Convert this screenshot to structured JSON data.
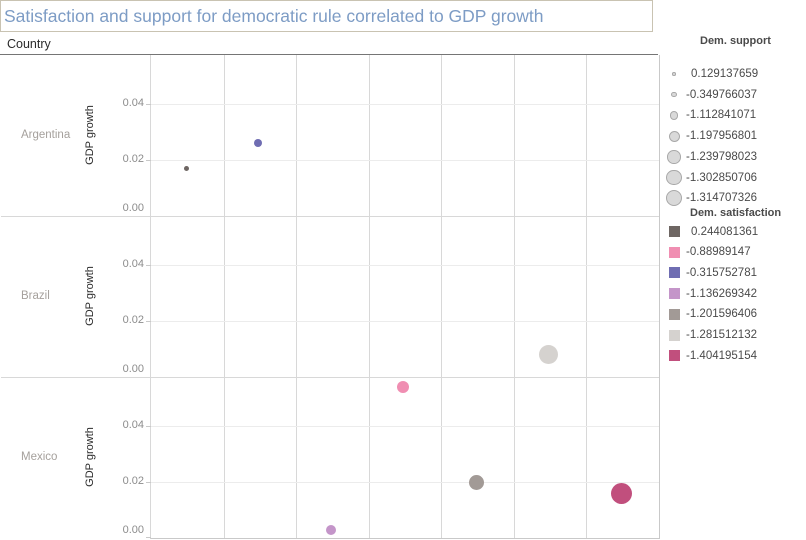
{
  "title": "Satisfaction and support for democratic rule correlated to GDP growth",
  "country_header": "Country",
  "chart_data": {
    "type": "scatter",
    "facet_column_label": "Country",
    "ylabel": "GDP growth",
    "ytick_labels": [
      "0.00",
      "0.02",
      "0.04"
    ],
    "yticks": [
      0.0,
      0.02,
      0.04
    ],
    "ylim": [
      0.0,
      0.0575
    ],
    "x_axis_labeled": false,
    "vertical_gridline_columns": 7,
    "grid": true,
    "panels": [
      {
        "country": "Argentina",
        "points": [
          {
            "x_frac": 0.069,
            "gdp_growth": 0.017,
            "dem_support": 0.129137659,
            "dem_satisfaction": 0.244081361,
            "color": "#6e6663",
            "diameter": 5
          },
          {
            "x_frac": 0.21,
            "gdp_growth": 0.026,
            "dem_support": -0.349766037,
            "dem_satisfaction": -0.315752781,
            "color": "#6f6db2",
            "diameter": 8
          }
        ]
      },
      {
        "country": "Brazil",
        "points": [
          {
            "x_frac": 0.783,
            "gdp_growth": 0.008,
            "dem_support": -1.302850706,
            "dem_satisfaction": -1.281512132,
            "color": "#d5d2cf",
            "diameter": 19
          }
        ]
      },
      {
        "country": "Mexico",
        "points": [
          {
            "x_frac": 0.496,
            "gdp_growth": 0.054,
            "dem_support": -1.197956801,
            "dem_satisfaction": -0.88989147,
            "color": "#f08eb2",
            "diameter": 12
          },
          {
            "x_frac": 0.354,
            "gdp_growth": 0.003,
            "dem_support": -1.112841071,
            "dem_satisfaction": -1.136269342,
            "color": "#c495c9",
            "diameter": 10
          },
          {
            "x_frac": 0.64,
            "gdp_growth": 0.02,
            "dem_support": -1.239798023,
            "dem_satisfaction": -1.201596406,
            "color": "#a29a96",
            "diameter": 15
          },
          {
            "x_frac": 0.927,
            "gdp_growth": 0.016,
            "dem_support": -1.314707326,
            "dem_satisfaction": -1.404195154,
            "color": "#c14f7d",
            "diameter": 21
          }
        ]
      }
    ]
  },
  "legends": {
    "size": {
      "title": "Dem. support",
      "items": [
        {
          "label": "0.129137659",
          "diameter": 3.5
        },
        {
          "label": "-0.349766037",
          "diameter": 5.5
        },
        {
          "label": "-1.112841071",
          "diameter": 8.5
        },
        {
          "label": "-1.197956801",
          "diameter": 11
        },
        {
          "label": "-1.239798023",
          "diameter": 13.5
        },
        {
          "label": "-1.302850706",
          "diameter": 15.5
        },
        {
          "label": "-1.314707326",
          "diameter": 16.5
        }
      ]
    },
    "color": {
      "title": "Dem. satisfaction",
      "items": [
        {
          "label": "0.244081361",
          "color": "#6e6663"
        },
        {
          "label": "-0.88989147",
          "color": "#f08eb2"
        },
        {
          "label": "-0.315752781",
          "color": "#6f6db2"
        },
        {
          "label": "-1.136269342",
          "color": "#c495c9"
        },
        {
          "label": "-1.201596406",
          "color": "#a29a96"
        },
        {
          "label": "-1.281512132",
          "color": "#d5d2cf"
        },
        {
          "label": "-1.404195154",
          "color": "#c14f7d"
        }
      ]
    }
  },
  "colors": {
    "title_text": "#7d9cc5",
    "title_border": "#c9c3b2",
    "row_label": "#a5a09c",
    "tick_label": "#8c8c8c",
    "grid_vertical": "#d8d8d8",
    "grid_horizontal": "#ececec"
  }
}
